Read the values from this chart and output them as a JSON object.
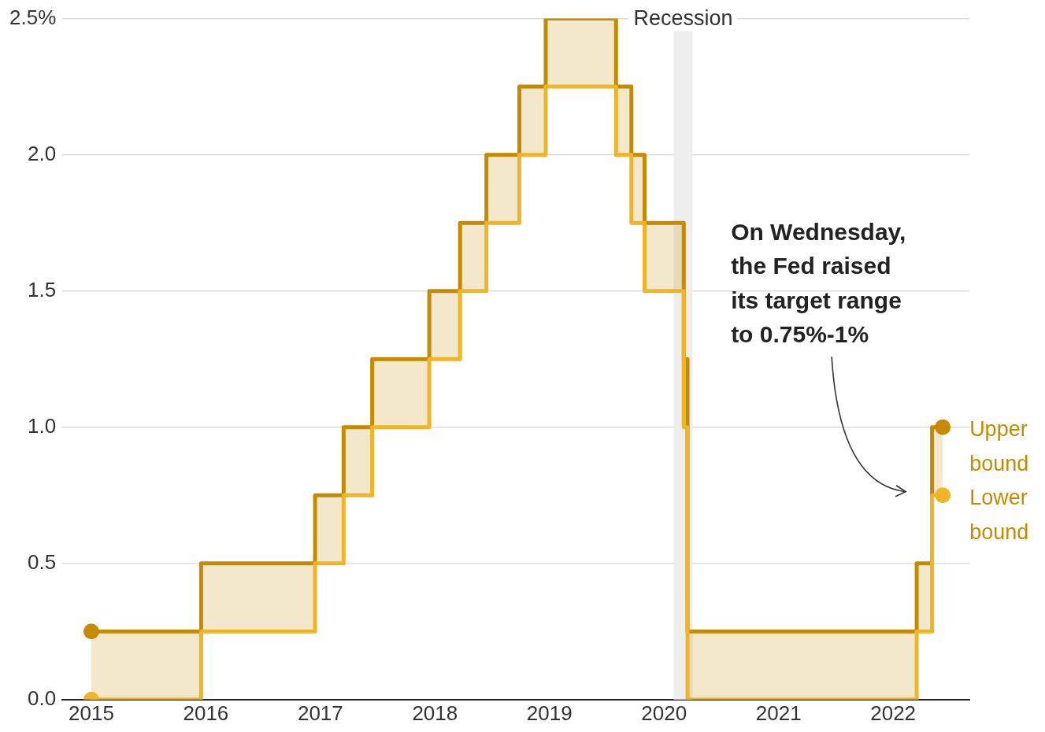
{
  "chart_data": {
    "type": "step",
    "x": [
      "2015-01-01",
      "2015-12-17",
      "2016-12-15",
      "2017-03-16",
      "2017-06-15",
      "2017-12-14",
      "2018-03-22",
      "2018-06-14",
      "2018-09-27",
      "2018-12-20",
      "2019-08-01",
      "2019-09-19",
      "2019-10-31",
      "2020-03-04",
      "2020-03-16",
      "2022-03-17",
      "2022-05-05",
      "2022-06-08"
    ],
    "series": [
      {
        "name": "Upper bound",
        "color": "#c48a00",
        "values": [
          0.25,
          0.5,
          0.75,
          1.0,
          1.25,
          1.5,
          1.75,
          2.0,
          2.25,
          2.5,
          2.25,
          2.0,
          1.75,
          1.25,
          0.25,
          0.5,
          1.0,
          1.0
        ],
        "lower": [
          0,
          0.25,
          0.5,
          0.75,
          1.0,
          1.25,
          1.5,
          1.75,
          2.0,
          2.25,
          2.0,
          1.75,
          1.5,
          1.0,
          0,
          0.25,
          0.75,
          0.75
        ],
        "upper": [
          0.25,
          0.5,
          0.75,
          1.0,
          1.25,
          1.5,
          1.75,
          2.0,
          2.25,
          2.5,
          2.25,
          2.0,
          1.75,
          1.25,
          0.25,
          0.5,
          1.0,
          1.0
        ]
      },
      {
        "name": "Lower bound",
        "color": "#f0b429",
        "values": [
          0,
          0.25,
          0.5,
          0.75,
          1.0,
          1.25,
          1.5,
          1.75,
          2.0,
          2.25,
          2.0,
          1.75,
          1.5,
          1.0,
          0,
          0.25,
          0.75,
          0.75
        ]
      }
    ],
    "xlim": [
      "2014-10-01",
      "2022-09-01"
    ],
    "xticks": [
      "2015",
      "2016",
      "2017",
      "2018",
      "2019",
      "2020",
      "2021",
      "2022"
    ],
    "ylim": [
      0,
      2.5
    ],
    "yticks": [
      {
        "value": 0,
        "label": "0.0"
      },
      {
        "value": 0.5,
        "label": "0.5"
      },
      {
        "value": 1,
        "label": "1.0"
      },
      {
        "value": 1.5,
        "label": "1.5"
      },
      {
        "value": 2,
        "label": "2.0"
      },
      {
        "value": 2.5,
        "label": "2.5%"
      }
    ],
    "bands": [
      {
        "axis": "x",
        "from": "2020-02-01",
        "to": "2020-04-01",
        "label": "Recession",
        "color": "#eeeeee"
      }
    ],
    "annotations": [
      "On Wednesday, the Fed raised its target range to 0.75%-1%"
    ],
    "grid": "y",
    "legend": false,
    "line_style": "solid"
  }
}
